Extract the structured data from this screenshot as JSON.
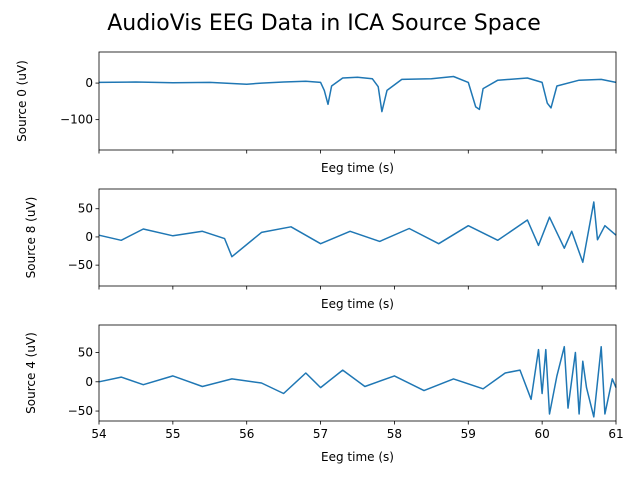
{
  "chart_data": {
    "type": "line",
    "title": "AudioVis EEG Data in ICA Source Space",
    "series_color": "#1f77b4",
    "panels": [
      {
        "name": "source-0",
        "ylabel": "Source 0 (uV)",
        "xlabel": "Eeg time (s)",
        "xlim": [
          54,
          61
        ],
        "ylim": [
          -183,
          85
        ],
        "yticks": [
          0,
          -100
        ],
        "ytick_labels": [
          "0",
          "−100"
        ],
        "show_xtick_labels": false,
        "x": [
          54.0,
          54.5,
          55.0,
          55.5,
          56.0,
          56.2,
          56.5,
          56.8,
          57.0,
          57.05,
          57.1,
          57.15,
          57.3,
          57.5,
          57.7,
          57.78,
          57.83,
          57.9,
          58.1,
          58.5,
          58.8,
          59.0,
          59.1,
          59.15,
          59.2,
          59.4,
          59.8,
          60.0,
          60.07,
          60.12,
          60.2,
          60.5,
          60.8,
          61.0
        ],
        "y": [
          2,
          3,
          1,
          2,
          -3,
          0,
          3,
          5,
          2,
          -20,
          -58,
          -8,
          14,
          16,
          12,
          -10,
          -78,
          -20,
          10,
          12,
          18,
          2,
          -65,
          -72,
          -15,
          8,
          14,
          2,
          -55,
          -68,
          -8,
          8,
          10,
          2
        ]
      },
      {
        "name": "source-8",
        "ylabel": "Source 8 (uV)",
        "xlabel": "Eeg time (s)",
        "xlim": [
          54,
          61
        ],
        "ylim": [
          -87,
          85
        ],
        "yticks": [
          50,
          0,
          -50
        ],
        "ytick_labels": [
          "50",
          "0",
          "−50"
        ],
        "show_xtick_labels": false,
        "x": [
          54.0,
          54.3,
          54.6,
          55.0,
          55.4,
          55.7,
          55.8,
          56.2,
          56.6,
          57.0,
          57.4,
          57.8,
          58.2,
          58.6,
          59.0,
          59.4,
          59.8,
          59.95,
          60.1,
          60.3,
          60.4,
          60.55,
          60.7,
          60.75,
          60.85,
          61.0
        ],
        "y": [
          3,
          -6,
          14,
          2,
          10,
          -3,
          -35,
          8,
          18,
          -12,
          10,
          -8,
          15,
          -12,
          20,
          -6,
          30,
          -15,
          35,
          -20,
          10,
          -45,
          62,
          -5,
          20,
          3
        ]
      },
      {
        "name": "source-4",
        "ylabel": "Source 4 (uV)",
        "xlabel": "Eeg time (s)",
        "xlim": [
          54,
          61
        ],
        "ylim": [
          -67,
          97
        ],
        "yticks": [
          50,
          0,
          -50
        ],
        "ytick_labels": [
          "50",
          "0",
          "−50"
        ],
        "show_xtick_labels": true,
        "xticks": [
          54,
          55,
          56,
          57,
          58,
          59,
          60,
          61
        ],
        "xtick_labels": [
          "54",
          "55",
          "56",
          "57",
          "58",
          "59",
          "60",
          "61"
        ],
        "x": [
          54.0,
          54.3,
          54.6,
          55.0,
          55.4,
          55.8,
          56.2,
          56.5,
          56.8,
          57.0,
          57.3,
          57.6,
          58.0,
          58.4,
          58.8,
          59.2,
          59.5,
          59.7,
          59.85,
          59.95,
          60.0,
          60.05,
          60.1,
          60.2,
          60.3,
          60.35,
          60.45,
          60.5,
          60.55,
          60.6,
          60.7,
          60.8,
          60.85,
          60.95,
          61.0
        ],
        "y": [
          0,
          8,
          -5,
          10,
          -8,
          5,
          -2,
          -20,
          15,
          -10,
          20,
          -8,
          10,
          -15,
          5,
          -12,
          15,
          20,
          -30,
          55,
          -20,
          55,
          -55,
          10,
          60,
          -45,
          50,
          -55,
          35,
          -10,
          -60,
          60,
          -55,
          5,
          -10
        ]
      }
    ]
  }
}
